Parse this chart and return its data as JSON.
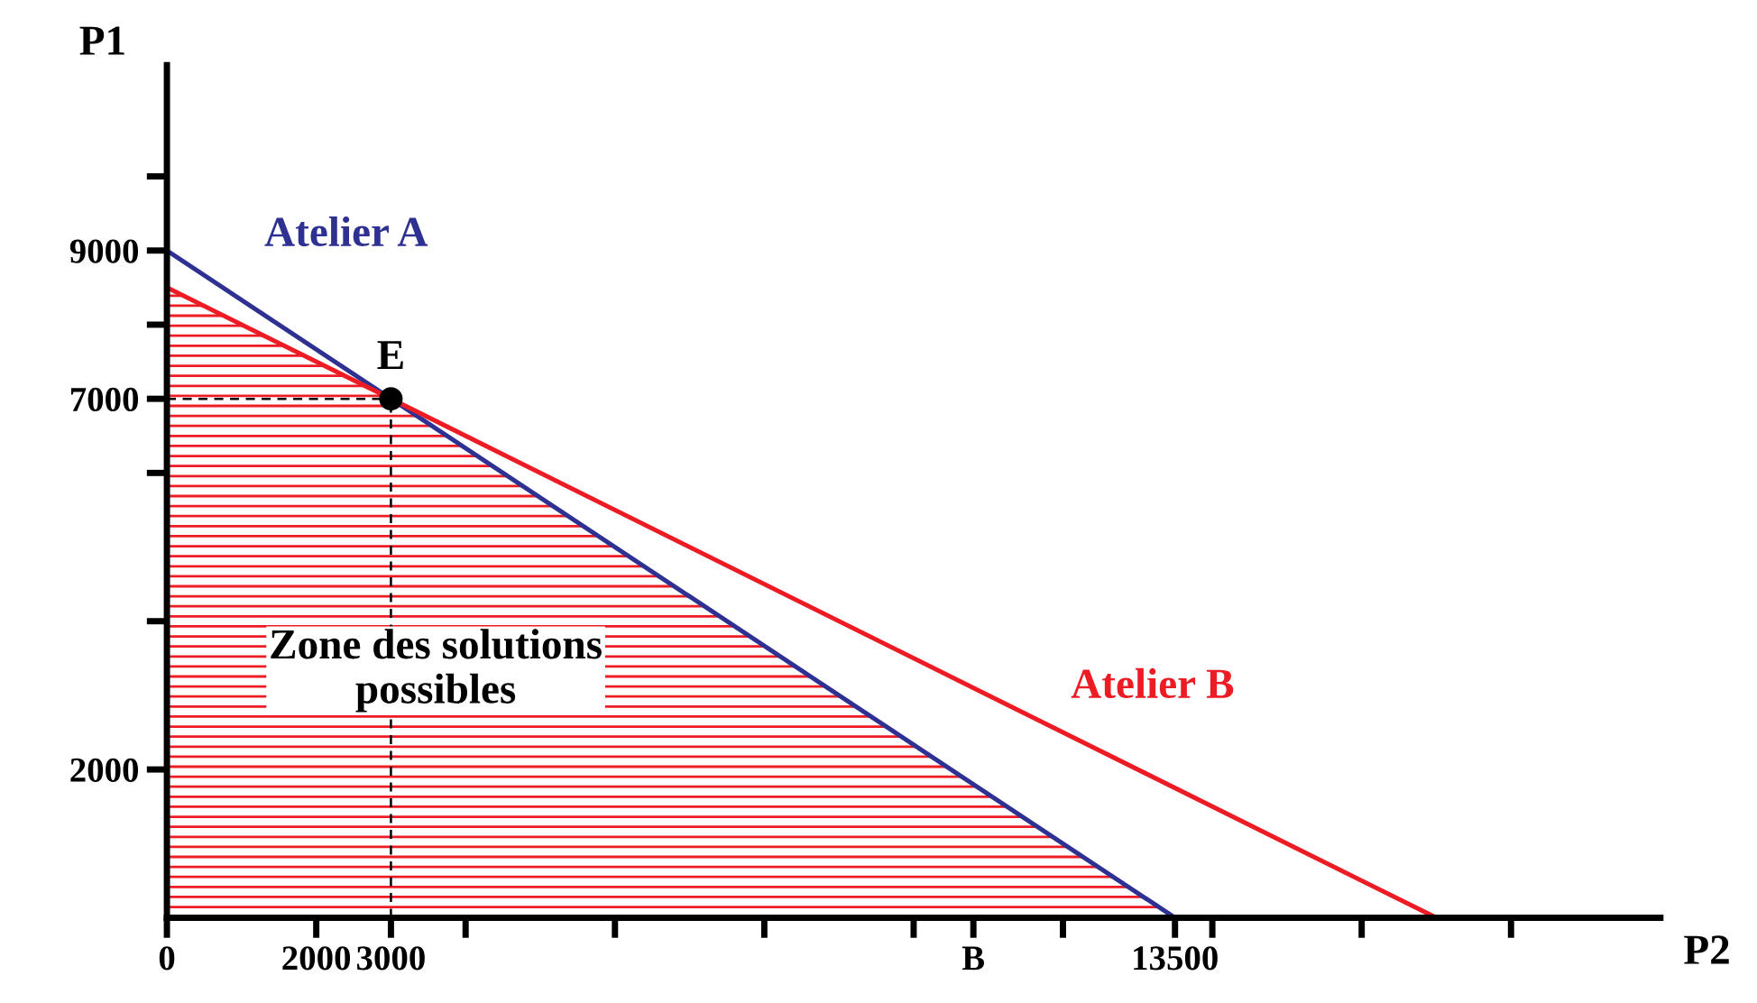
{
  "chart_data": {
    "type": "line",
    "xlabel": "P2",
    "ylabel": "P1",
    "xlim": [
      0,
      20000
    ],
    "ylim": [
      0,
      11500
    ],
    "xticks": [
      {
        "value": 0,
        "label": "0"
      },
      {
        "value": 2000,
        "label": "2000"
      },
      {
        "value": 3000,
        "label": "3000"
      },
      {
        "value": 4000,
        "label": null
      },
      {
        "value": 6000,
        "label": null
      },
      {
        "value": 8000,
        "label": null
      },
      {
        "value": 10000,
        "label": null
      },
      {
        "value": 10800,
        "label": "B"
      },
      {
        "value": 12000,
        "label": null
      },
      {
        "value": 13500,
        "label": "13500"
      },
      {
        "value": 14000,
        "label": null
      },
      {
        "value": 16000,
        "label": null
      },
      {
        "value": 18000,
        "label": null
      }
    ],
    "yticks": [
      2000,
      {
        "value": 4000,
        "label": null
      },
      {
        "value": 6000,
        "label": null
      },
      7000,
      {
        "value": 8000,
        "label": null
      },
      9000,
      {
        "value": 10000,
        "label": null
      }
    ],
    "series": [
      {
        "type": "area",
        "color": "#ed1c24",
        "x": [
          0,
          3000,
          13500
        ],
        "values": [
          8500,
          7000,
          0
        ]
      },
      {
        "color": "#2e3192",
        "x": [
          0,
          13500
        ],
        "values": [
          9000,
          0
        ]
      },
      {
        "color": "#ed1c24",
        "x": [
          0,
          17000
        ],
        "values": [
          8500,
          0
        ]
      },
      {
        "type": "line",
        "color": "#000000",
        "line_style": "dashed",
        "x": [
          3000,
          3000
        ],
        "values": [
          0,
          7000
        ]
      },
      {
        "type": "line",
        "color": "#000000",
        "line_style": "dashed",
        "x": [
          0,
          3000
        ],
        "values": [
          7000,
          7000
        ]
      },
      {
        "type": "scatter",
        "color": "#000000",
        "marker": "circle",
        "x": [
          3000
        ],
        "values": [
          7000
        ]
      }
    ],
    "annotations": [
      {
        "text": "E",
        "x": 3000,
        "y": 7000
      },
      "Atelier A",
      "Atelier B",
      "Zone des solutions\npossibles"
    ],
    "grid": false,
    "legend": false
  }
}
